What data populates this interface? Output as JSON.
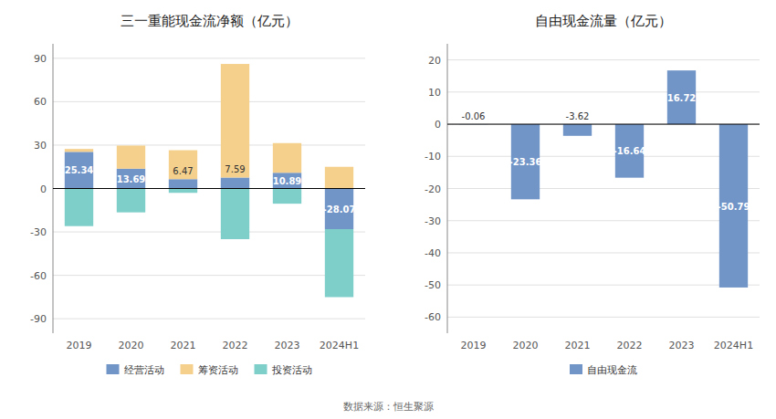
{
  "chart_data": [
    {
      "type": "bar",
      "title": "三一重能现金流净额（亿元）",
      "categories": [
        "2019",
        "2020",
        "2021",
        "2022",
        "2023",
        "2024H1"
      ],
      "series": [
        {
          "name": "经营活动",
          "color": "#7295c8",
          "values": [
            25.34,
            13.69,
            6.47,
            7.59,
            10.89,
            -28.07
          ],
          "data_labels": true
        },
        {
          "name": "筹资活动",
          "color": "#f5d08c",
          "values": [
            2.0,
            16.0,
            20.0,
            78.5,
            20.5,
            15.0
          ]
        },
        {
          "name": "投资活动",
          "color": "#7ececa",
          "values": [
            -26.0,
            -16.5,
            -3.0,
            -35.0,
            -10.5,
            -47.0
          ]
        }
      ],
      "stacked": true,
      "ylim": [
        -100,
        100
      ],
      "yticks": [
        -90,
        -60,
        -30,
        0,
        30,
        60,
        90
      ],
      "grid": true,
      "legend": "bottom",
      "annotations": [
        "数据来源：恒生聚源"
      ]
    },
    {
      "type": "bar",
      "title": "自由现金流量（亿元）",
      "categories": [
        "2019",
        "2020",
        "2021",
        "2022",
        "2023",
        "2024H1"
      ],
      "series": [
        {
          "name": "自由现金流",
          "color": "#7295c8",
          "values": [
            -0.06,
            -23.36,
            -3.62,
            -16.64,
            16.72,
            -50.79
          ]
        }
      ],
      "data_labels": true,
      "ylim": [
        -65,
        25
      ],
      "yticks": [
        -60,
        -50,
        -40,
        -30,
        -20,
        -10,
        0,
        10,
        20
      ],
      "grid": true,
      "legend": "bottom"
    }
  ]
}
